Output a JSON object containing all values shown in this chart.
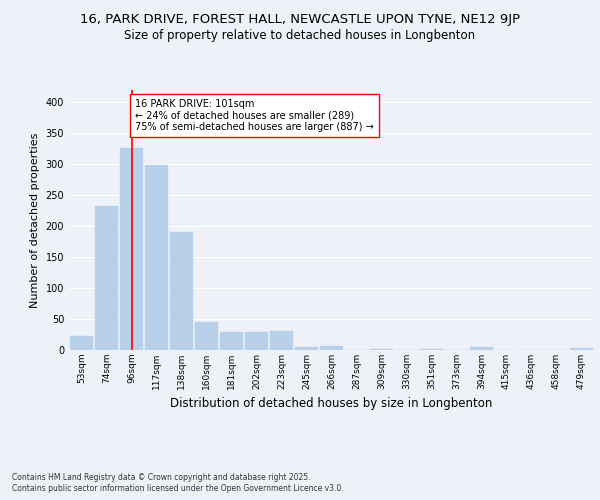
{
  "title1": "16, PARK DRIVE, FOREST HALL, NEWCASTLE UPON TYNE, NE12 9JP",
  "title2": "Size of property relative to detached houses in Longbenton",
  "xlabel": "Distribution of detached houses by size in Longbenton",
  "ylabel": "Number of detached properties",
  "categories": [
    "53sqm",
    "74sqm",
    "96sqm",
    "117sqm",
    "138sqm",
    "160sqm",
    "181sqm",
    "202sqm",
    "223sqm",
    "245sqm",
    "266sqm",
    "287sqm",
    "309sqm",
    "330sqm",
    "351sqm",
    "373sqm",
    "394sqm",
    "415sqm",
    "436sqm",
    "458sqm",
    "479sqm"
  ],
  "values": [
    23,
    233,
    327,
    299,
    190,
    46,
    29,
    29,
    30,
    5,
    6,
    0,
    2,
    0,
    2,
    0,
    5,
    0,
    0,
    0,
    3
  ],
  "bar_color": "#b8d0e8",
  "bar_edgecolor": "#b8d0e8",
  "redline_index": 2,
  "annotation_title": "16 PARK DRIVE: 101sqm",
  "annotation_line1": "← 24% of detached houses are smaller (289)",
  "annotation_line2": "75% of semi-detached houses are larger (887) →",
  "ylim": [
    0,
    420
  ],
  "yticks": [
    0,
    50,
    100,
    150,
    200,
    250,
    300,
    350,
    400
  ],
  "footnote1": "Contains HM Land Registry data © Crown copyright and database right 2025.",
  "footnote2": "Contains public sector information licensed under the Open Government Licence v3.0.",
  "bg_color": "#eef2f8",
  "plot_bg_color": "#eef2f8",
  "grid_color": "#ffffff",
  "title1_fontsize": 9.5,
  "title2_fontsize": 8.5,
  "xlabel_fontsize": 8.5,
  "ylabel_fontsize": 8,
  "annot_fontsize": 7,
  "footnote_fontsize": 5.5,
  "tick_fontsize": 6.5,
  "ytick_fontsize": 7
}
